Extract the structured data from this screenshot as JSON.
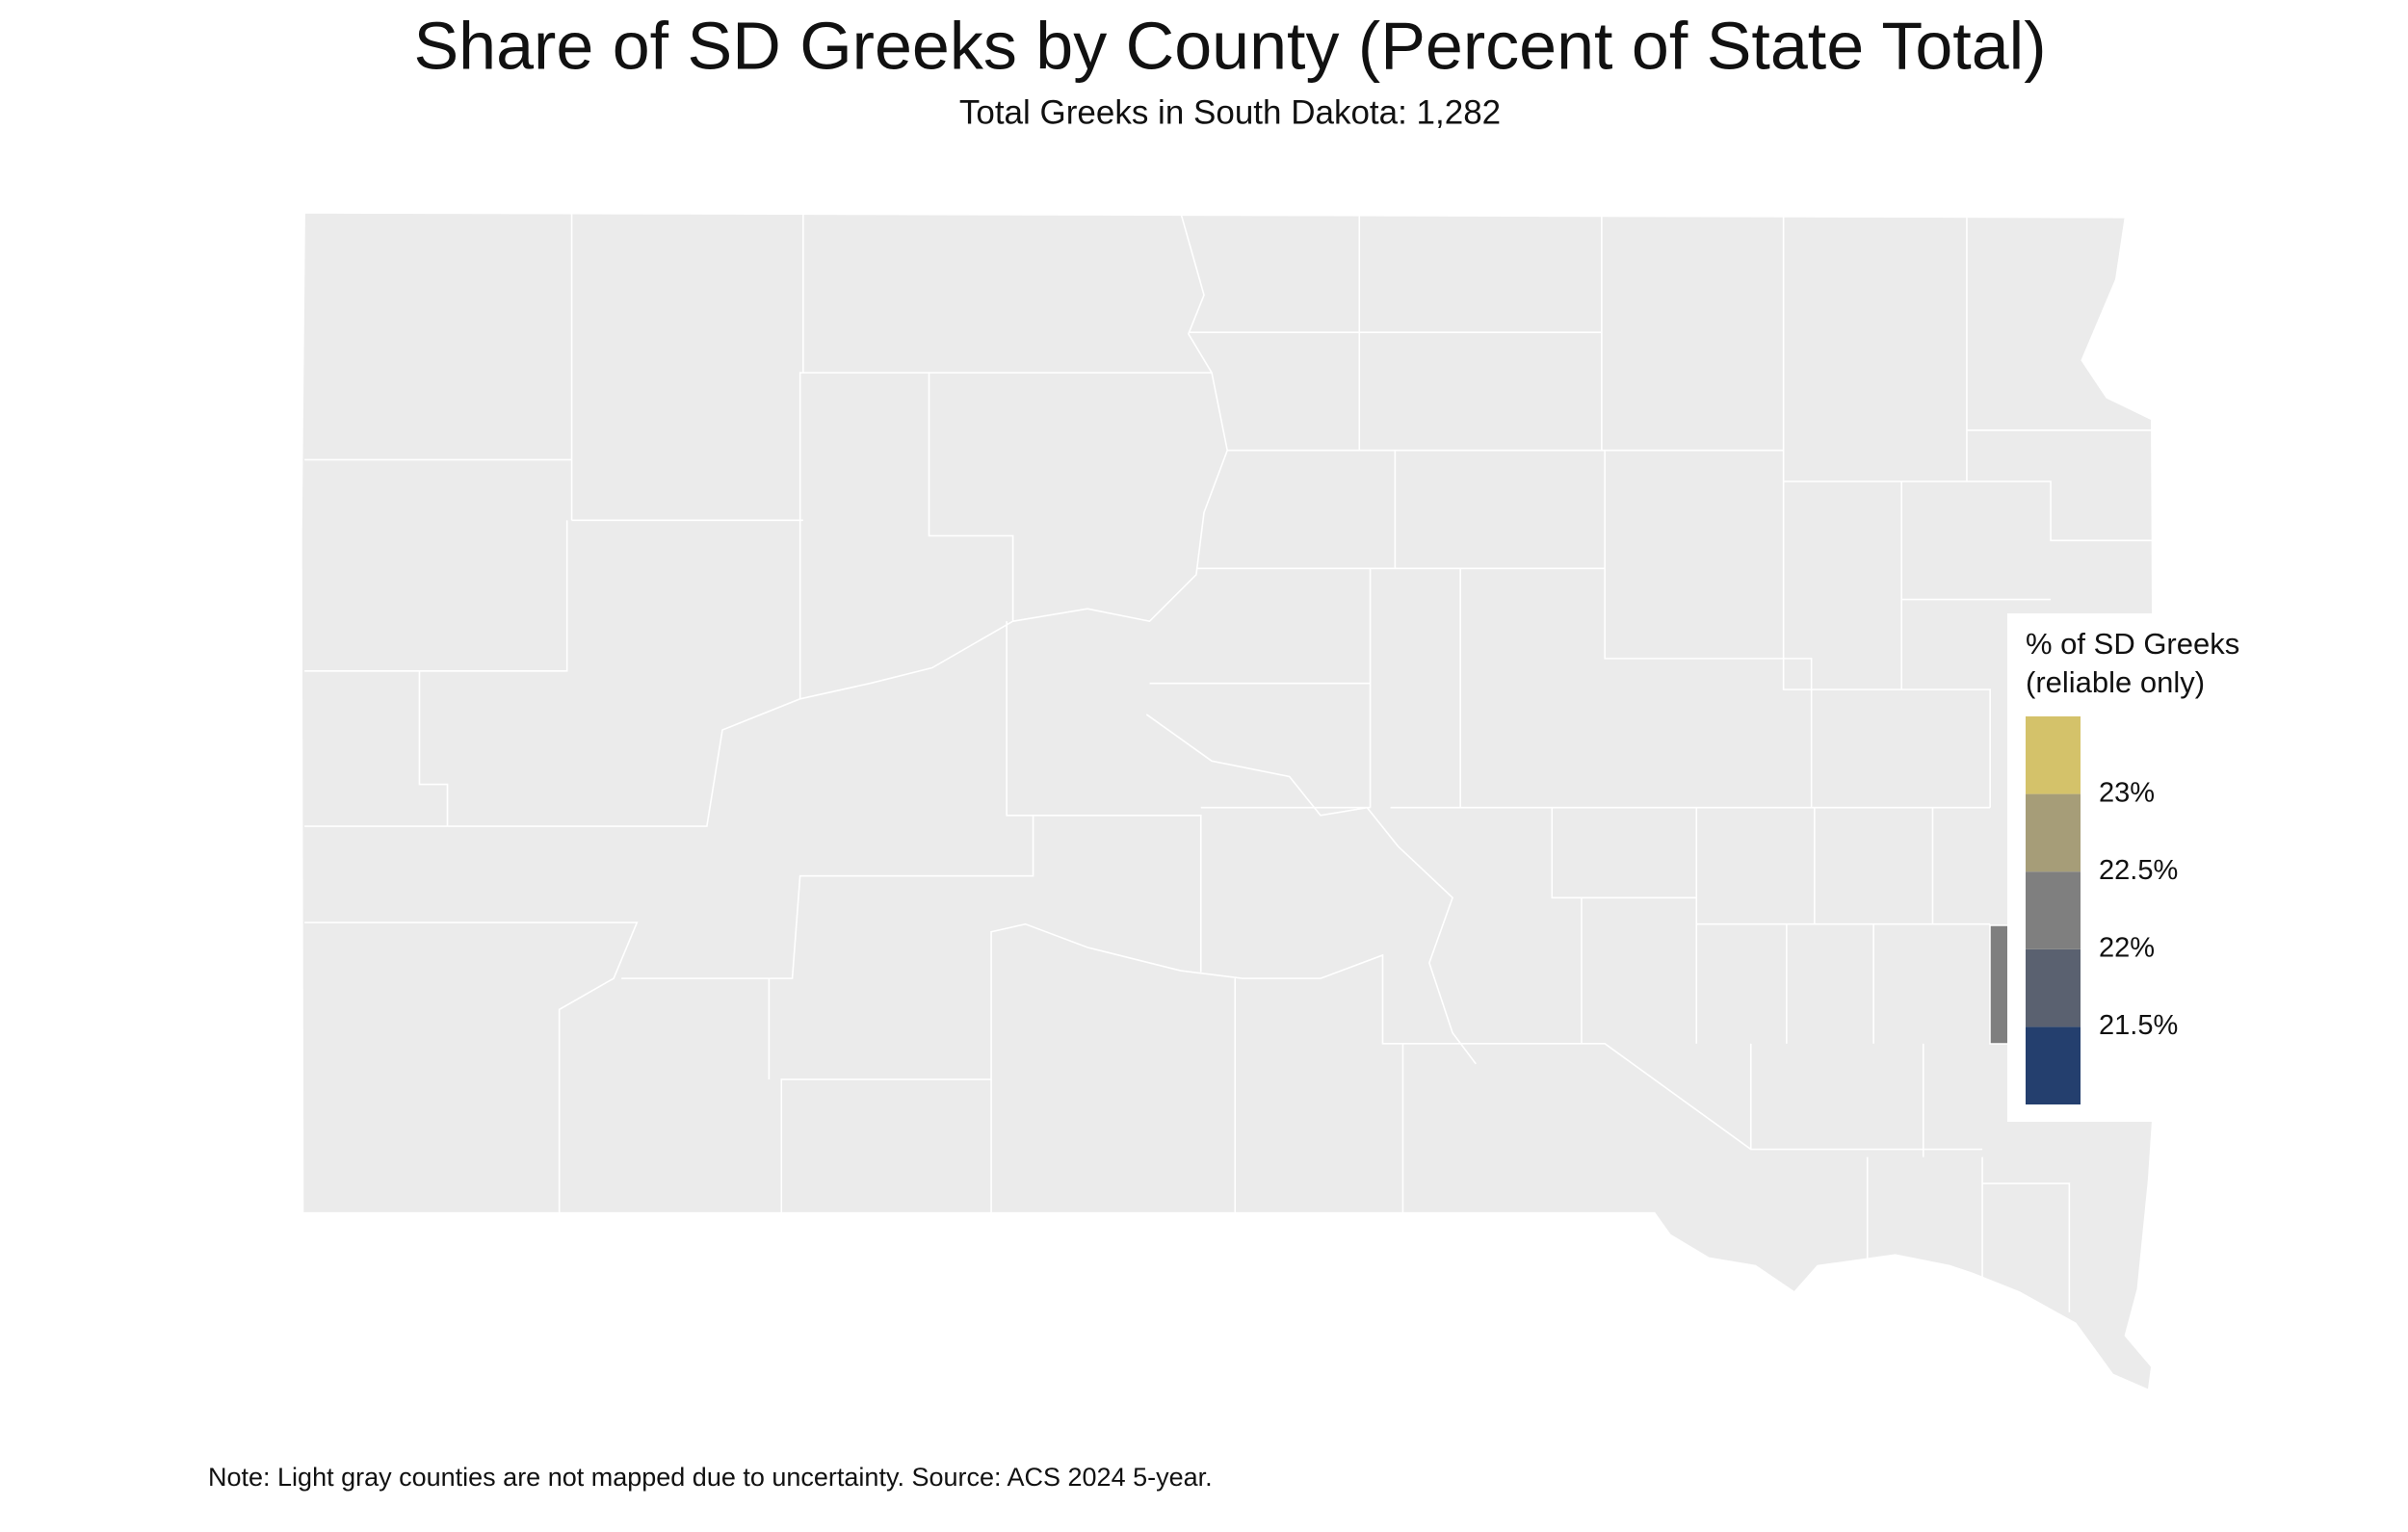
{
  "chart_data": {
    "type": "choropleth",
    "title": "Share of SD Greeks by County (Percent of State Total)",
    "subtitle": "Total Greeks in South Dakota: 1,282",
    "note": "Note: Light gray counties are not mapped due to uncertainty. Source: ACS 2024 5-year.",
    "values": [
      22.2
    ],
    "legend": {
      "title": [
        "% of SD Greeks",
        "(reliable only)"
      ],
      "lim": [
        21,
        23.5
      ],
      "ticks": [
        {
          "value": 21.5,
          "label": "21.5%"
        },
        {
          "value": 22,
          "label": "22%"
        },
        {
          "value": 22.5,
          "label": "22.5%"
        },
        {
          "value": 23,
          "label": "23%"
        }
      ],
      "colors": [
        "#243f6e",
        "#5a6170",
        "#7f7f7f",
        "#a69d78",
        "#d4c26a"
      ]
    }
  }
}
